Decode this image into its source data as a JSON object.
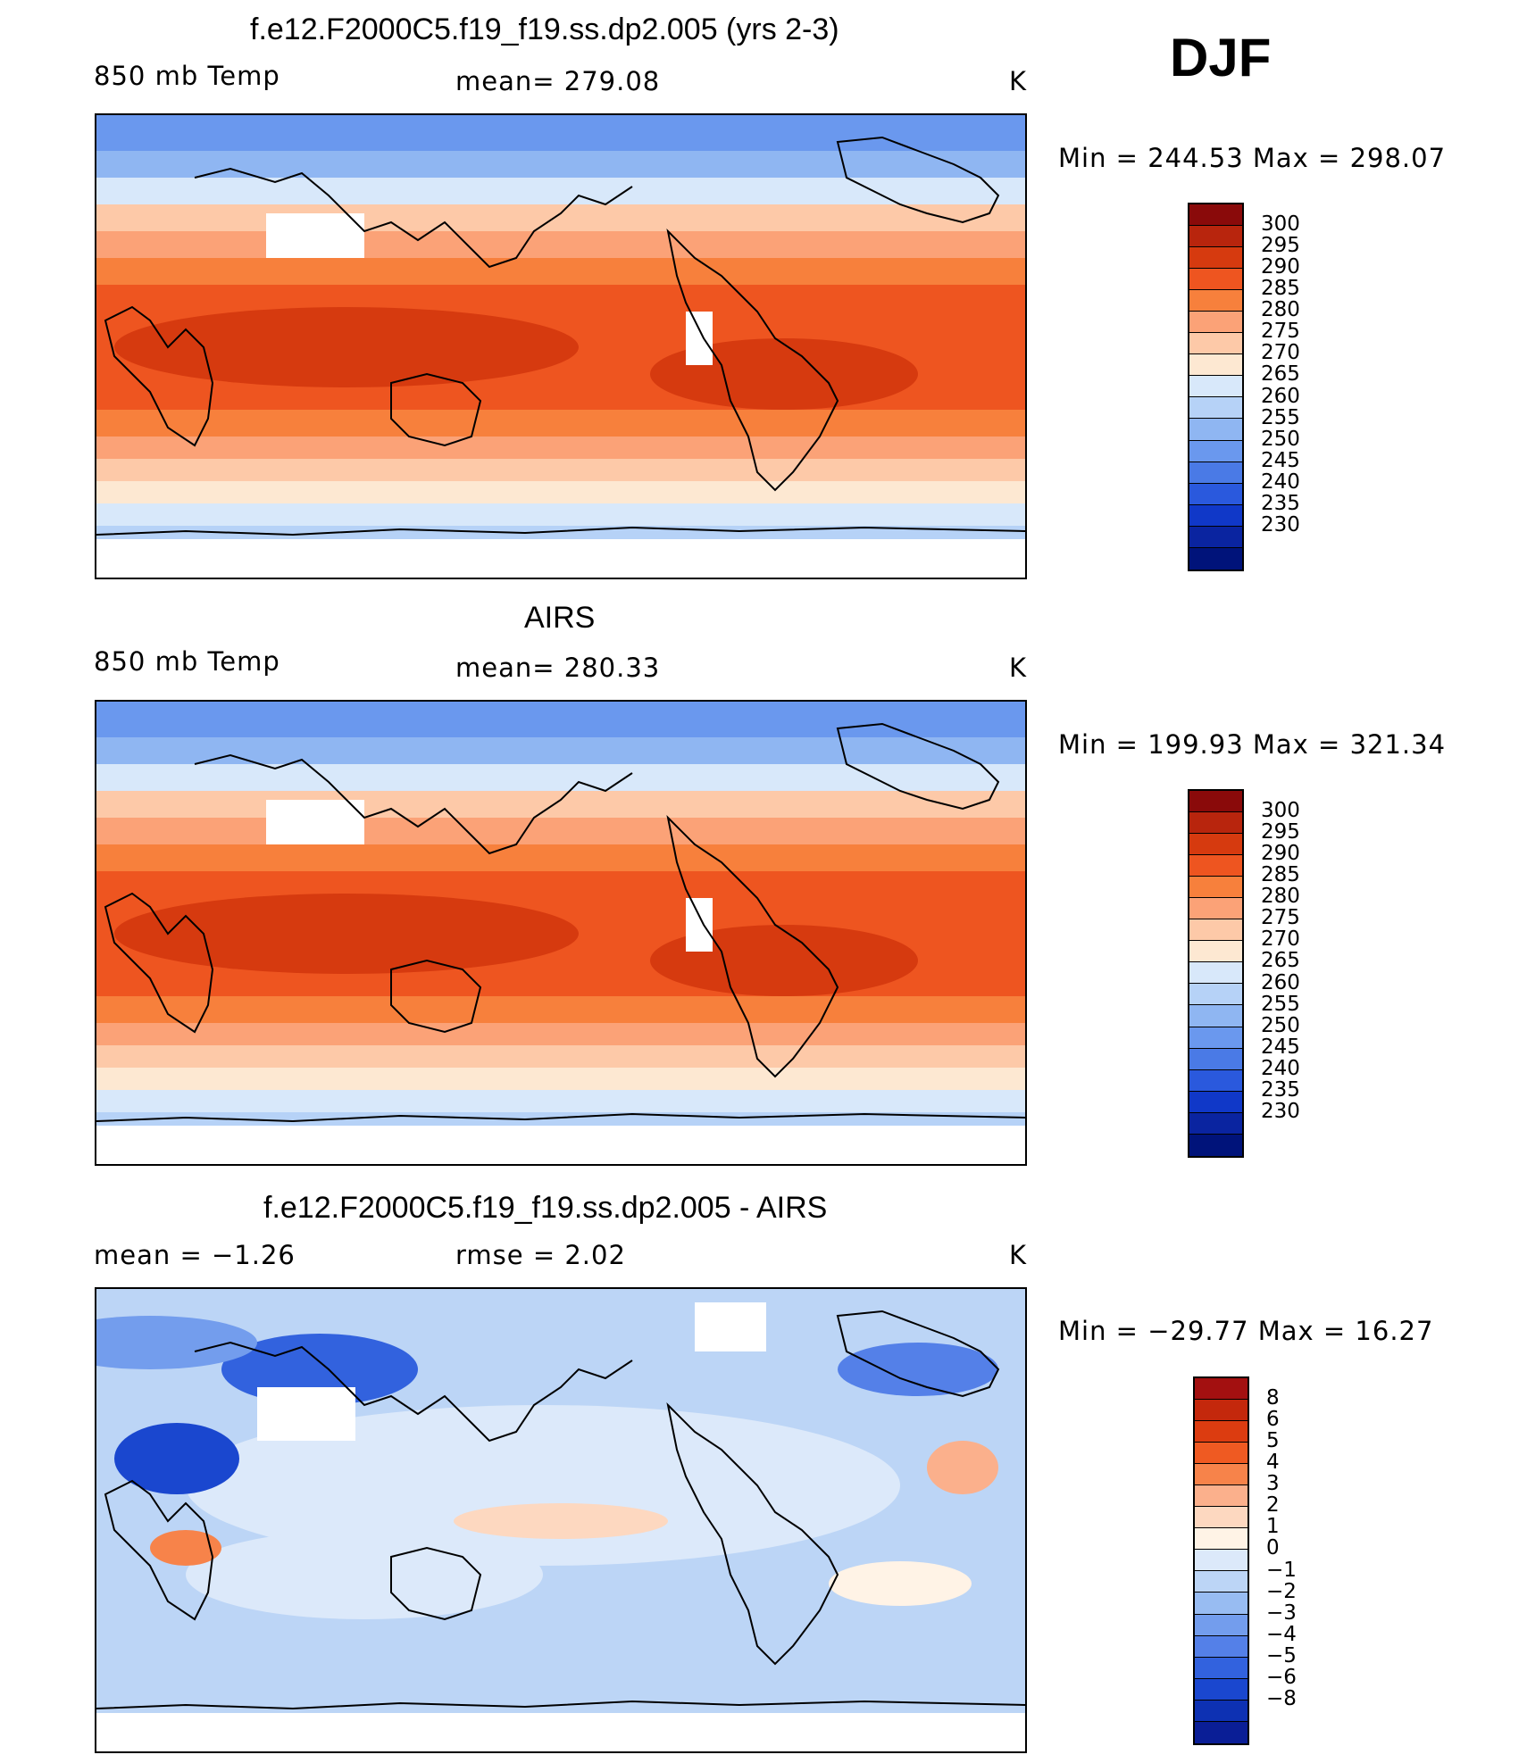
{
  "season": "DJF",
  "colors": {
    "abs_levels": [
      "#8a0a0a",
      "#b8250d",
      "#d63a0f",
      "#ee5520",
      "#f7803c",
      "#fba277",
      "#fdc9a8",
      "#fde8d2",
      "#d8e8fa",
      "#b6d2f7",
      "#8fb6f2",
      "#6a98ee",
      "#4a7ae6",
      "#2a59dd",
      "#1038c8",
      "#0a24a0",
      "#00137a"
    ],
    "diff_levels": [
      "#a31010",
      "#c4280c",
      "#dc3c10",
      "#ef5a22",
      "#f7834a",
      "#fbb08c",
      "#fdd8c0",
      "#fff3e6",
      "#dce9fa",
      "#bcd5f6",
      "#98bcf2",
      "#739ded",
      "#5480e8",
      "#3262de",
      "#1a47cf",
      "#0d31b3",
      "#0a1e96"
    ]
  },
  "panels": [
    {
      "title": "f.e12.F2000C5.f19_f19.ss.dp2.005 (yrs 2-3)",
      "left_label": "850 mb Temp",
      "center_label": "mean=  279.08",
      "units": "K",
      "minmax": "Min  =  244.53  Max  =  298.07",
      "colorbar_labels": [
        "300",
        "295",
        "290",
        "285",
        "280",
        "275",
        "270",
        "265",
        "260",
        "255",
        "250",
        "245",
        "240",
        "235",
        "230"
      ],
      "style": "abs"
    },
    {
      "title": "AIRS",
      "left_label": "850 mb Temp",
      "center_label": "mean=  280.33",
      "units": "K",
      "minmax": "Min  =  199.93  Max  =  321.34",
      "colorbar_labels": [
        "300",
        "295",
        "290",
        "285",
        "280",
        "275",
        "270",
        "265",
        "260",
        "255",
        "250",
        "245",
        "240",
        "235",
        "230"
      ],
      "style": "abs"
    },
    {
      "title": "f.e12.F2000C5.f19_f19.ss.dp2.005 - AIRS",
      "left_label": "mean  =    −1.26",
      "center_label": "rmse  =     2.02",
      "units": "K",
      "minmax": "Min  =  −29.77  Max  =    16.27",
      "colorbar_labels": [
        "8",
        "6",
        "5",
        "4",
        "3",
        "2",
        "1",
        "0",
        "−1",
        "−2",
        "−3",
        "−4",
        "−5",
        "−6",
        "−8"
      ],
      "style": "diff"
    }
  ]
}
